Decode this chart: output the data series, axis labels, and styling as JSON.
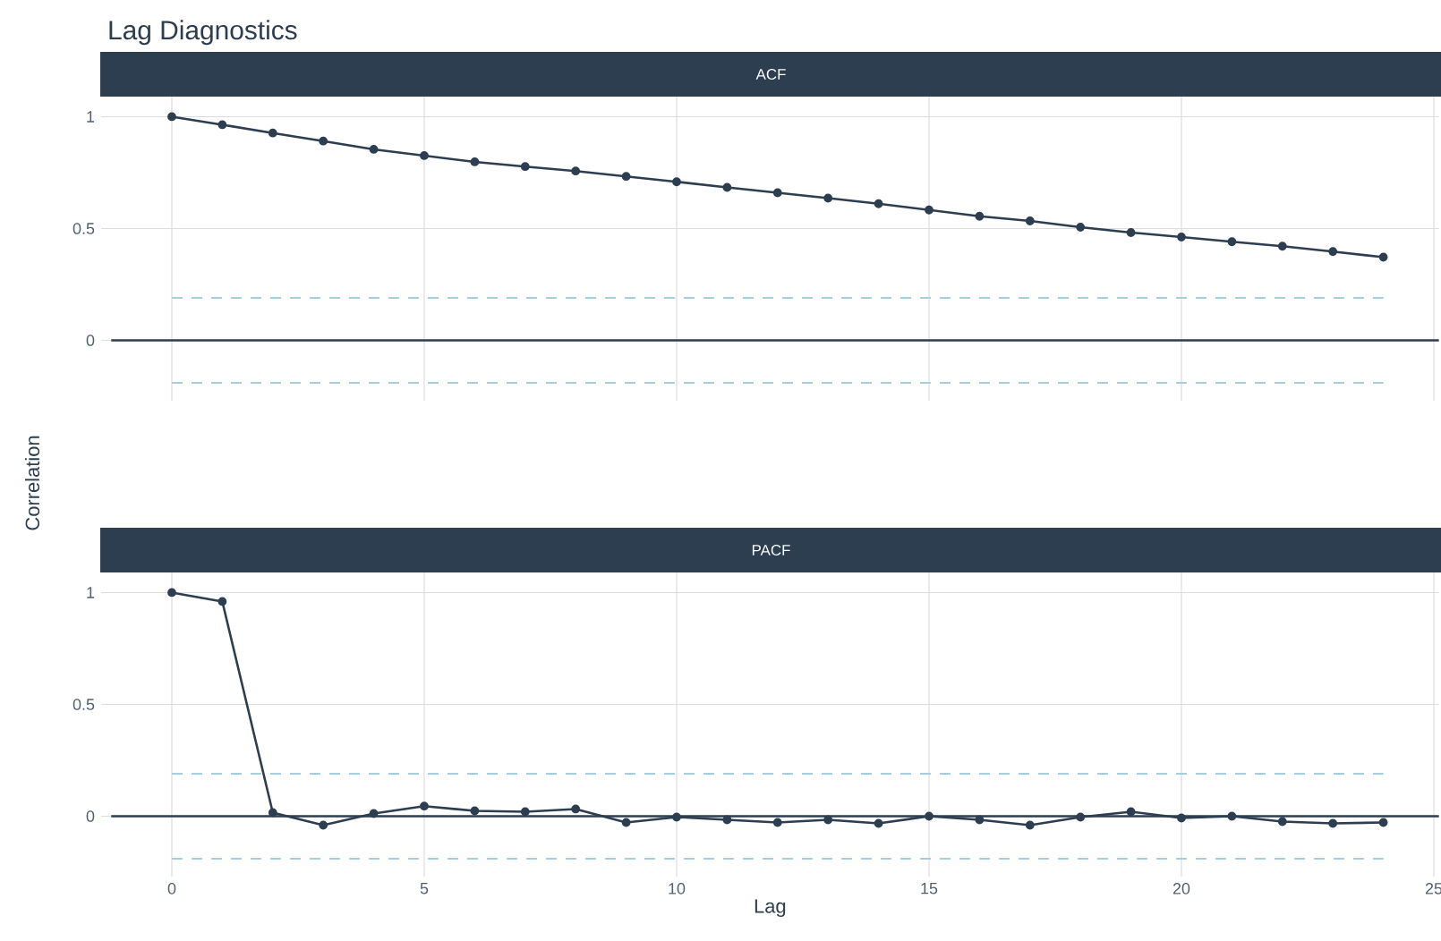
{
  "chart_data": [
    {
      "type": "line",
      "title": "Lag Diagnostics",
      "subtitle": "ACF",
      "ylabel": "Correlation",
      "x": [
        0,
        1,
        2,
        3,
        4,
        5,
        6,
        7,
        8,
        9,
        10,
        11,
        12,
        13,
        14,
        15,
        16,
        17,
        18,
        19,
        20,
        21,
        22,
        23,
        24
      ],
      "series": [
        {
          "color": "#2c3e50",
          "values": [
            1,
            0.964,
            0.927,
            0.891,
            0.854,
            0.826,
            0.798,
            0.777,
            0.757,
            0.733,
            0.709,
            0.684,
            0.66,
            0.636,
            0.611,
            0.583,
            0.555,
            0.534,
            0.506,
            0.482,
            0.462,
            0.441,
            0.421,
            0.397,
            0.372
          ]
        }
      ],
      "xlim": [
        -1.4,
        25.1
      ],
      "ylim": [
        -0.27,
        1.09
      ],
      "xticks": [
        0,
        5,
        10,
        15,
        20,
        25
      ],
      "yticks": [
        0,
        0.5,
        1
      ],
      "tick_labels": "y",
      "grid": true,
      "marker": "circle",
      "line_style": "solid",
      "ref_lines": [
        {
          "axis": "y",
          "value": 0.19,
          "color": "#a6cee3",
          "line_style": "dashed"
        },
        {
          "axis": "y",
          "value": -0.19,
          "color": "#a6cee3",
          "line_style": "dashed"
        }
      ]
    },
    {
      "type": "line",
      "subtitle": "PACF",
      "xlabel": "Lag",
      "x": [
        0,
        1,
        2,
        3,
        4,
        5,
        6,
        7,
        8,
        9,
        10,
        11,
        12,
        13,
        14,
        15,
        16,
        17,
        18,
        19,
        20,
        21,
        22,
        23,
        24
      ],
      "series": [
        {
          "color": "#2c3e50",
          "values": [
            1,
            0.96,
            0.016,
            -0.04,
            0.012,
            0.045,
            0.024,
            0.02,
            0.032,
            -0.028,
            -0.004,
            -0.016,
            -0.028,
            -0.016,
            -0.032,
            0,
            -0.016,
            -0.04,
            -0.004,
            0.02,
            -0.008,
            0,
            -0.024,
            -0.032,
            -0.028
          ]
        }
      ],
      "xlim": [
        -1.4,
        25.1
      ],
      "ylim": [
        -0.27,
        1.09
      ],
      "xticks": [
        0,
        5,
        10,
        15,
        20,
        25
      ],
      "yticks": [
        0,
        0.5,
        1
      ],
      "grid": true,
      "marker": "circle",
      "line_style": "solid",
      "ref_lines": [
        {
          "axis": "y",
          "value": 0.19,
          "color": "#a6cee3",
          "line_style": "dashed"
        },
        {
          "axis": "y",
          "value": -0.19,
          "color": "#a6cee3",
          "line_style": "dashed"
        }
      ]
    }
  ]
}
